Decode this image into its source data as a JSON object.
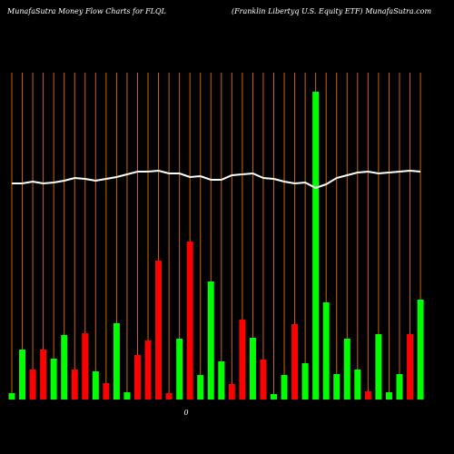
{
  "chart_data": {
    "type": "bar",
    "title": "MunafaSutra  Money Flow  Charts for FLQL",
    "subtitle": "(Franklin  Libertyq U.S. Equity ETF) MunafaSutra.com",
    "annotation": "0",
    "values": [
      7,
      55,
      33,
      55,
      45,
      71,
      33,
      73,
      31,
      18,
      84,
      8,
      49,
      65,
      153,
      7,
      67,
      174,
      27,
      130,
      42,
      17,
      88,
      68,
      44,
      6,
      27,
      83,
      40,
      339,
      107,
      28,
      67,
      33,
      9,
      72,
      8,
      28,
      72,
      110
    ],
    "colors": [
      "#00ff00",
      "#00ff00",
      "#ff0000",
      "#ff0000",
      "#00ff00",
      "#00ff00",
      "#ff0000",
      "#ff0000",
      "#00ff00",
      "#ff0000",
      "#00ff00",
      "#00ff00",
      "#ff0000",
      "#ff0000",
      "#ff0000",
      "#ff0000",
      "#00ff00",
      "#ff0000",
      "#00ff00",
      "#00ff00",
      "#00ff00",
      "#ff0000",
      "#ff0000",
      "#00ff00",
      "#ff0000",
      "#00ff00",
      "#00ff00",
      "#ff0000",
      "#00ff00",
      "#00ff00",
      "#00ff00",
      "#00ff00",
      "#00ff00",
      "#00ff00",
      "#ff0000",
      "#00ff00",
      "#00ff00",
      "#00ff00",
      "#ff0000",
      "#00ff00"
    ],
    "line": {
      "color": "#ffffff",
      "values": [
        238,
        238,
        240,
        238,
        239,
        241,
        244,
        243,
        241,
        243,
        245,
        248,
        251,
        251,
        252,
        249,
        249,
        245,
        246,
        242,
        242,
        247,
        248,
        249,
        244,
        243,
        240,
        238,
        239,
        233,
        237,
        244,
        247,
        250,
        251,
        249,
        250,
        251,
        252,
        251
      ]
    },
    "ylim": [
      0,
      360
    ],
    "gridline_color": "#cc6600"
  }
}
